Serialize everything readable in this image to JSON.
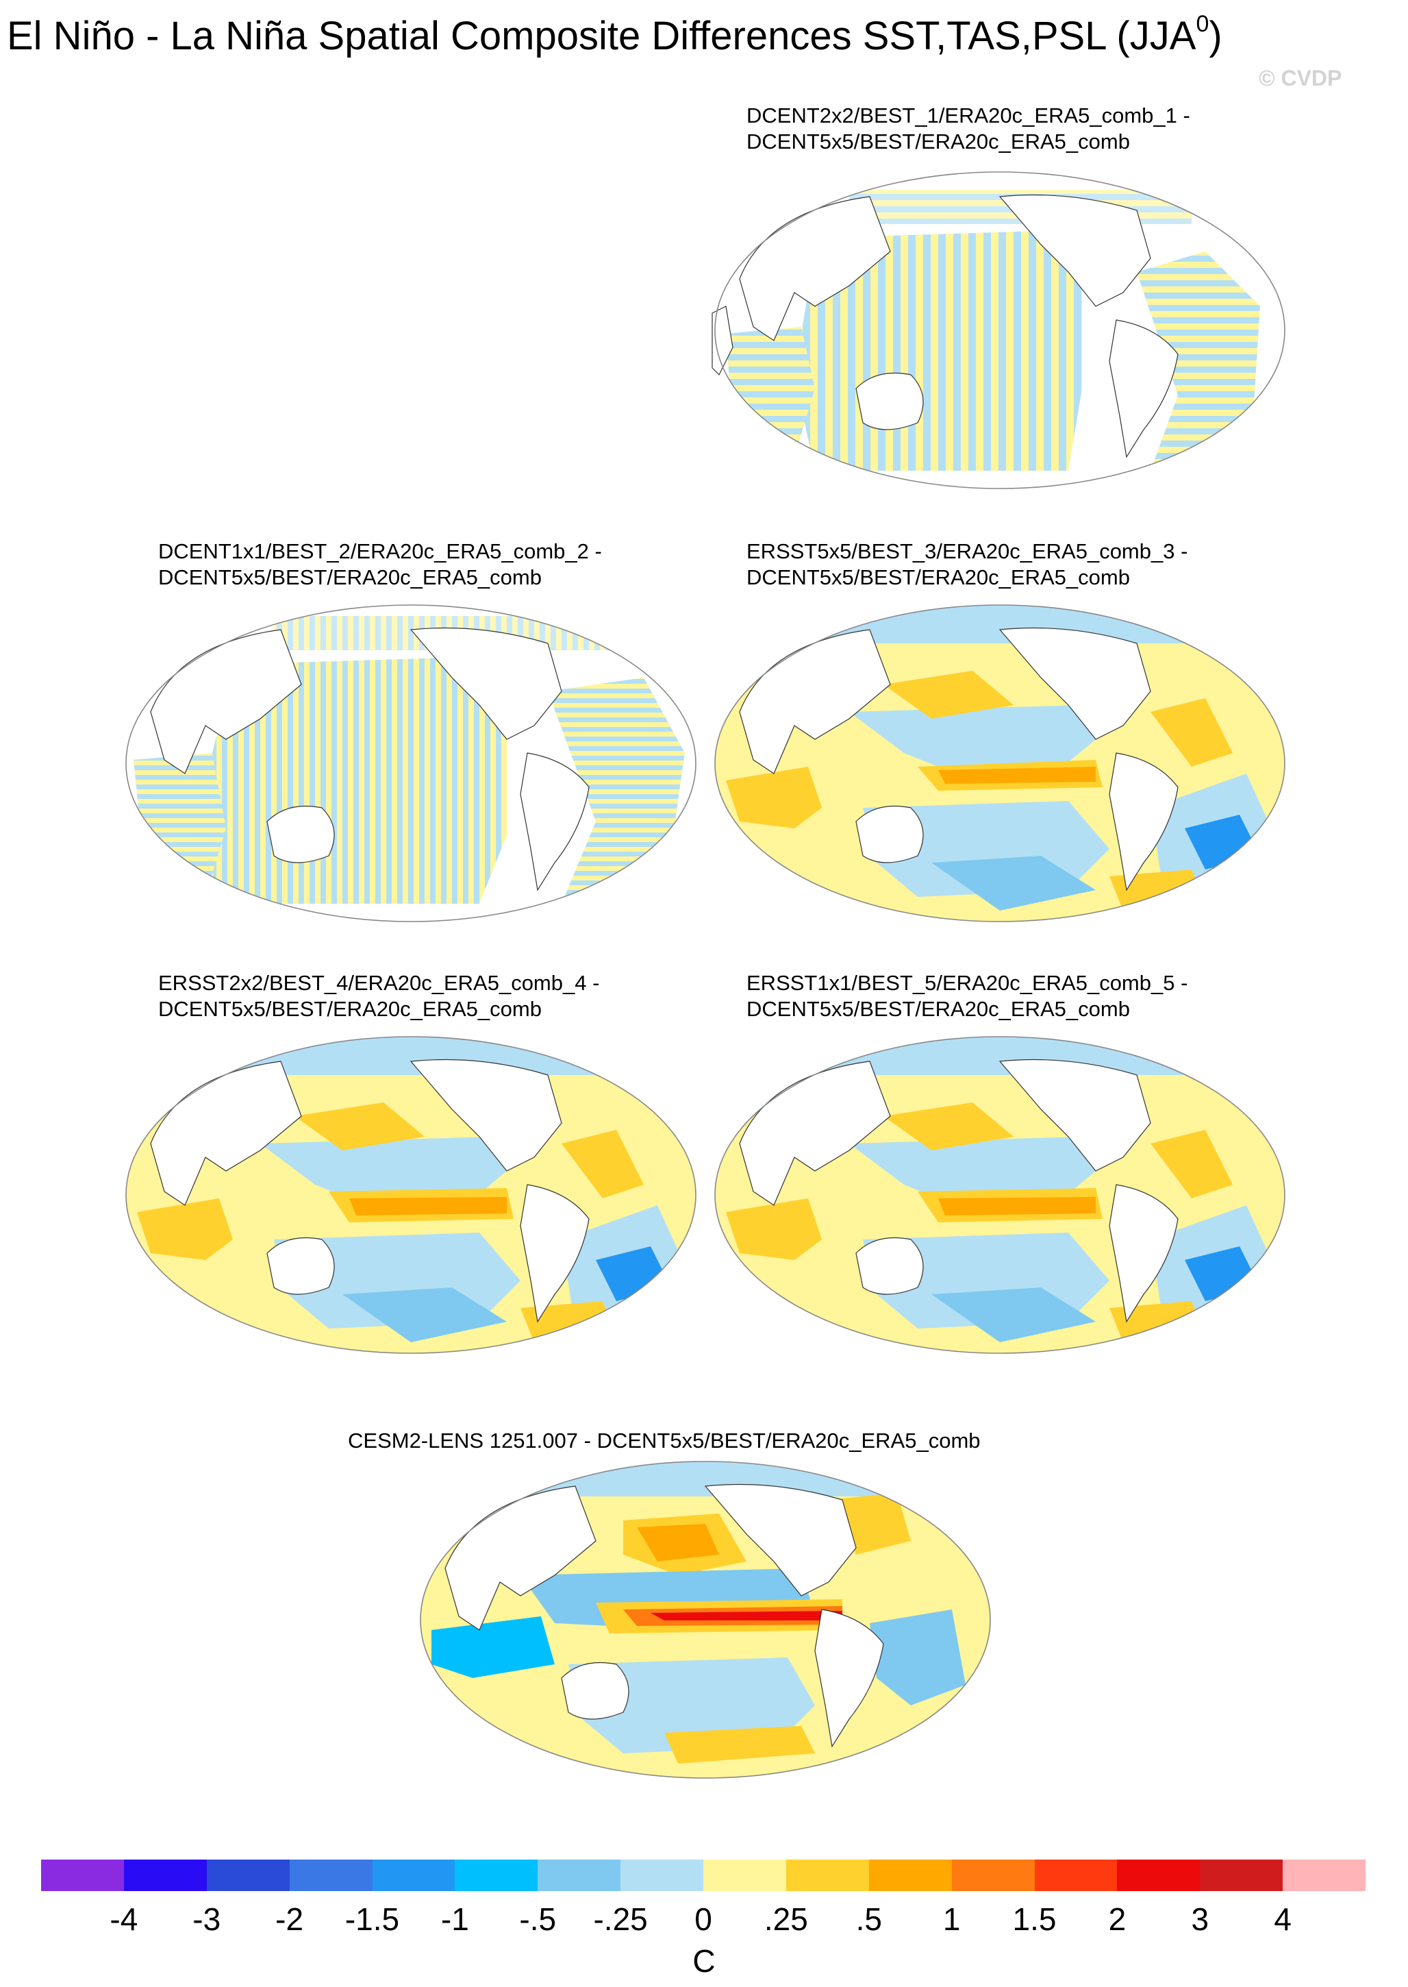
{
  "title": {
    "main": "El Niño - La Niña Spatial Composite Differences SST,TAS,PSL (JJA",
    "superscript": "0",
    "close": ")"
  },
  "watermark": "© CVDP",
  "panels": [
    {
      "line1": "DCENT2x2/BEST_1/ERA20c_ERA5_comb_1 -",
      "line2": "DCENT5x5/BEST/ERA20c_ERA5_comb"
    },
    {
      "line1": "DCENT1x1/BEST_2/ERA20c_ERA5_comb_2 -",
      "line2": "DCENT5x5/BEST/ERA20c_ERA5_comb"
    },
    {
      "line1": "ERSST5x5/BEST_3/ERA20c_ERA5_comb_3 -",
      "line2": "DCENT5x5/BEST/ERA20c_ERA5_comb"
    },
    {
      "line1": "ERSST2x2/BEST_4/ERA20c_ERA5_comb_4 -",
      "line2": "DCENT5x5/BEST/ERA20c_ERA5_comb"
    },
    {
      "line1": "ERSST1x1/BEST_5/ERA20c_ERA5_comb_5 -",
      "line2": "DCENT5x5/BEST/ERA20c_ERA5_comb"
    },
    {
      "line1": "CESM2-LENS 1251.007 - DCENT5x5/BEST/ERA20c_ERA5_comb",
      "line2": ""
    }
  ],
  "colorbar": {
    "colors": [
      "#8a2be2",
      "#2a0bf5",
      "#2a4bd7",
      "#3a78e6",
      "#2196f3",
      "#00bfff",
      "#7fc9f0",
      "#b3dff5",
      "#fff59a",
      "#ffd12e",
      "#ffa800",
      "#ff7a10",
      "#ff3a0e",
      "#ed0a0a",
      "#d01c1c",
      "#ffb4b8"
    ],
    "labels": [
      "-4",
      "-3",
      "-2",
      "-1.5",
      "-1",
      "-.5",
      "-.25",
      "0",
      ".25",
      ".5",
      "1",
      "1.5",
      "2",
      "3",
      "4"
    ],
    "unit": "C"
  }
}
